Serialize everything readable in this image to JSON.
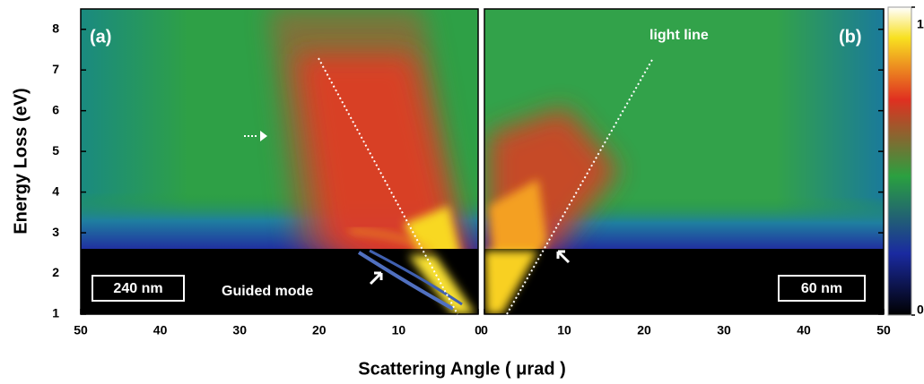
{
  "chart_data": {
    "type": "heatmap",
    "x_label": "Scattering Angle ( μrad )",
    "y_label": "Energy Loss (eV)",
    "ylim": [
      1,
      8.5
    ],
    "yticks": [
      1,
      2,
      3,
      4,
      5,
      6,
      7,
      8
    ],
    "panels": [
      {
        "label": "(a)",
        "thickness": "240 nm",
        "xlim": [
          50,
          0
        ],
        "xticks": [
          50,
          40,
          30,
          20,
          10,
          0
        ]
      },
      {
        "label": "(b)",
        "thickness": "60 nm",
        "xlim": [
          0,
          50
        ],
        "xticks": [
          0,
          10,
          20,
          30,
          40,
          50
        ]
      }
    ],
    "colorbar": {
      "lim": [
        0,
        1
      ],
      "ticks": [
        0,
        1
      ]
    },
    "annotations": [
      "light line",
      "Guided mode"
    ]
  }
}
